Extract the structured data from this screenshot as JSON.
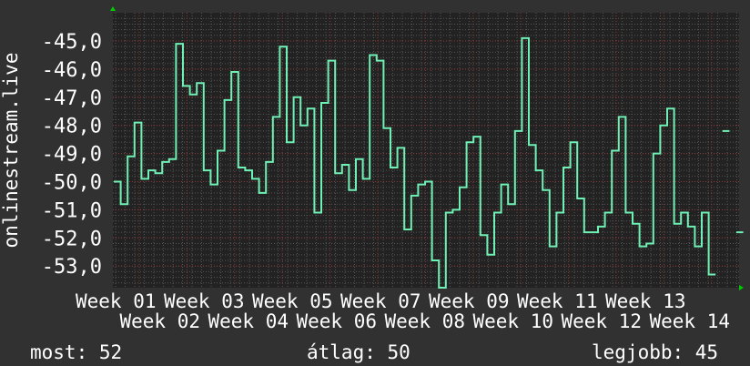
{
  "chart_data": {
    "type": "line",
    "step": true,
    "ylabel": "onlinestream.live",
    "xlabel": "",
    "ylim": [
      -53.8,
      -44.0
    ],
    "yticks": [
      "-45,0",
      "-46,0",
      "-47,0",
      "-48,0",
      "-49,0",
      "-50,0",
      "-51,0",
      "-52,0",
      "-53,0"
    ],
    "ytick_values": [
      -45,
      -46,
      -47,
      -48,
      -49,
      -50,
      -51,
      -52,
      -53
    ],
    "xticks": [
      "Week 01",
      "Week 02",
      "Week 03",
      "Week 04",
      "Week 05",
      "Week 06",
      "Week 07",
      "Week 08",
      "Week 09",
      "Week 10",
      "Week 11",
      "Week 12",
      "Week 13",
      "Week 14"
    ],
    "grid": true,
    "colors": {
      "line": "#6ff0b4",
      "background": "#313131",
      "plot": "#222222",
      "major_grid": "#8a3a3a",
      "minor_grid": "#555555",
      "arrow": "#00cc00"
    },
    "series": [
      {
        "values": [
          -50.0,
          -50.8,
          -49.1,
          -47.9,
          -49.9,
          -49.6,
          -49.7,
          -49.3,
          -49.2,
          -45.1,
          -46.6,
          -46.9,
          -46.5,
          -49.6,
          -50.1,
          -48.9,
          -47.1,
          -46.1,
          -49.5,
          -49.6,
          -49.9,
          -50.4,
          -49.3,
          -47.7,
          -45.2,
          -48.6,
          -47.0,
          -48.0,
          -47.4,
          -51.1,
          -47.2,
          -45.7,
          -49.7,
          -49.4,
          -50.3,
          -49.2,
          -49.9,
          -45.5,
          -45.7,
          -48.1,
          -49.5,
          -48.8,
          -51.7,
          -50.5,
          -50.1,
          -50.0,
          -52.8,
          -53.8,
          -51.1,
          -51.0,
          -50.2,
          -48.6,
          -48.4,
          -51.9,
          -52.6,
          -51.1,
          -50.1,
          -50.8,
          -48.2,
          -44.9,
          -48.7,
          -49.6,
          -50.3,
          -52.3,
          -51.1,
          -49.5,
          -48.6,
          -50.6,
          -51.8,
          -51.8,
          -51.6,
          -51.1,
          -48.9,
          -47.7,
          -51.1,
          -51.5,
          -52.3,
          -52.2,
          -49.0,
          -48.0,
          -47.4,
          -51.5,
          -51.1,
          -51.6,
          -52.3,
          -51.1,
          -53.3,
          null,
          -48.2,
          null,
          -51.8
        ]
      }
    ]
  },
  "footer": {
    "current": "most: 52",
    "average": "átlag: 50",
    "max": "legjobb: 45"
  }
}
